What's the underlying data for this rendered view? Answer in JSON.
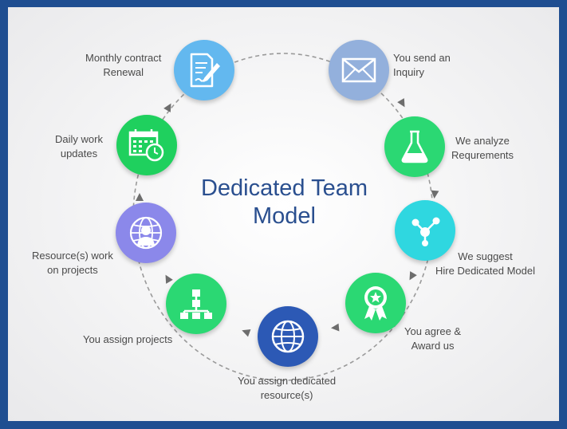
{
  "title": {
    "line1": "Dedicated Team",
    "line2": "Model"
  },
  "colors": {
    "border": "#1f4e91",
    "title": "#2a4f8f",
    "connector": "#8c8c8c"
  },
  "steps": [
    {
      "id": "inquiry",
      "lines": [
        "You send an",
        "Inquiry"
      ],
      "color": "#93b0dc",
      "icon": "envelope-icon"
    },
    {
      "id": "analyze",
      "lines": [
        "We analyze",
        "Requrements"
      ],
      "color": "#2bd873",
      "icon": "flask-icon"
    },
    {
      "id": "suggest",
      "lines": [
        "We suggest",
        "Hire Dedicated Model"
      ],
      "color": "#2fd7e0",
      "icon": "molecule-icon"
    },
    {
      "id": "award",
      "lines": [
        "You agree &",
        "Award us"
      ],
      "color": "#2bd873",
      "icon": "award-ribbon-icon"
    },
    {
      "id": "resource",
      "lines": [
        "You assign dedicated",
        "resource(s)"
      ],
      "color": "#2c59b5",
      "icon": "globe-icon"
    },
    {
      "id": "projects",
      "lines": [
        "You assign projects"
      ],
      "color": "#2bd873",
      "icon": "hierarchy-icon"
    },
    {
      "id": "work",
      "lines": [
        "Resource(s) work",
        "on projects"
      ],
      "color": "#8b88ea",
      "icon": "globe-user-icon"
    },
    {
      "id": "updates",
      "lines": [
        "Daily work",
        "updates"
      ],
      "color": "#1fd05e",
      "icon": "calendar-clock-icon"
    },
    {
      "id": "renewal",
      "lines": [
        "Monthly contract",
        "Renewal"
      ],
      "color": "#63b8ef",
      "icon": "contract-pen-icon"
    }
  ]
}
